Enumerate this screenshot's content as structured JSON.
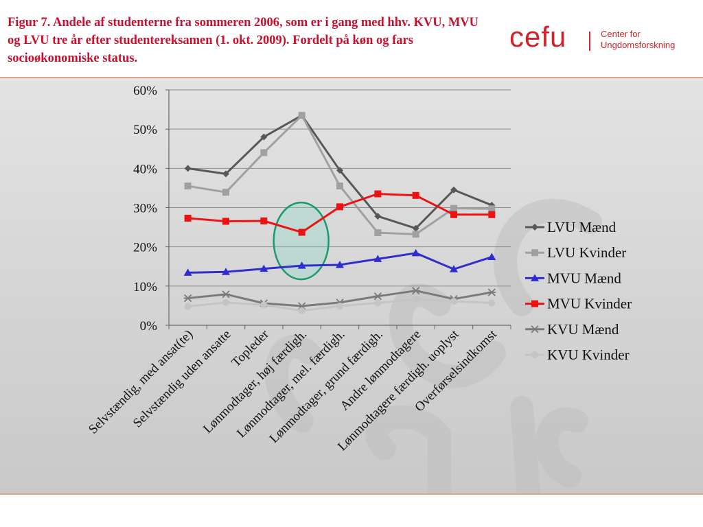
{
  "header": {
    "title": "Figur 7. Andele af studenterne fra sommeren 2006, som er i gang med hhv. KVU, MVU og LVU tre år efter studentereksamen (1. okt. 2009). Fordelt på køn og fars socioøkonomiske status."
  },
  "logo": {
    "word": "cefu",
    "name_line1": "Center for",
    "name_line2": "Ungdomsforskning",
    "color": "#d2232a"
  },
  "chart_data": {
    "type": "line",
    "title": "Figur 7. Andele af studenterne fra sommeren 2006, som er i gang med hhv. KVU, MVU og LVU tre år efter studentereksamen (1. okt. 2009). Fordelt på køn og fars socioøkonomiske status.",
    "xlabel": "",
    "ylabel": "",
    "ylim": [
      0,
      0.6
    ],
    "yticks": [
      0,
      0.1,
      0.2,
      0.3,
      0.4,
      0.5,
      0.6
    ],
    "ytick_labels": [
      "0%",
      "10%",
      "20%",
      "30%",
      "40%",
      "50%",
      "60%"
    ],
    "grid": true,
    "legend_position": "right",
    "categories": [
      "Selvstændig, med ansat(te)",
      "Selvstændig uden ansatte",
      "Topleder",
      "Lønmodtager, høj færdigh.",
      "Lønmodtager, mel. færdigh.",
      "Lønmodtager, grund færdigh.",
      "Andre lønmodtagere",
      "Lønmodtagere færdigh. uoplyst",
      "Overførselsindkomst"
    ],
    "series": [
      {
        "name": "LVU Mænd",
        "color": "#58585a",
        "marker": "diamond",
        "values": [
          0.4,
          0.386,
          0.48,
          0.535,
          0.395,
          0.278,
          0.247,
          0.345,
          0.306
        ]
      },
      {
        "name": "LVU Kvinder",
        "color": "#a0a0a0",
        "marker": "square",
        "values": [
          0.355,
          0.339,
          0.44,
          0.535,
          0.355,
          0.236,
          0.232,
          0.298,
          0.297
        ]
      },
      {
        "name": "MVU Mænd",
        "color": "#2e2ecc",
        "marker": "triangle",
        "values": [
          0.134,
          0.136,
          0.144,
          0.152,
          0.154,
          0.169,
          0.184,
          0.143,
          0.174
        ]
      },
      {
        "name": "MVU Kvinder",
        "color": "#ee1111",
        "marker": "square",
        "values": [
          0.273,
          0.265,
          0.266,
          0.237,
          0.302,
          0.335,
          0.331,
          0.282,
          0.282
        ]
      },
      {
        "name": "KVU Mænd",
        "color": "#7a7a7a",
        "marker": "star",
        "values": [
          0.069,
          0.079,
          0.056,
          0.049,
          0.058,
          0.074,
          0.088,
          0.067,
          0.084
        ]
      },
      {
        "name": "KVU Kvinder",
        "color": "#c4c4c4",
        "marker": "circle",
        "values": [
          0.048,
          0.058,
          0.052,
          0.037,
          0.049,
          0.057,
          0.066,
          0.061,
          0.057
        ]
      }
    ],
    "annotations": [
      {
        "type": "ellipse",
        "category": "Lønmodtager, høj færdigh.",
        "y_center": 0.215,
        "color": "#1a9a6c"
      }
    ]
  }
}
